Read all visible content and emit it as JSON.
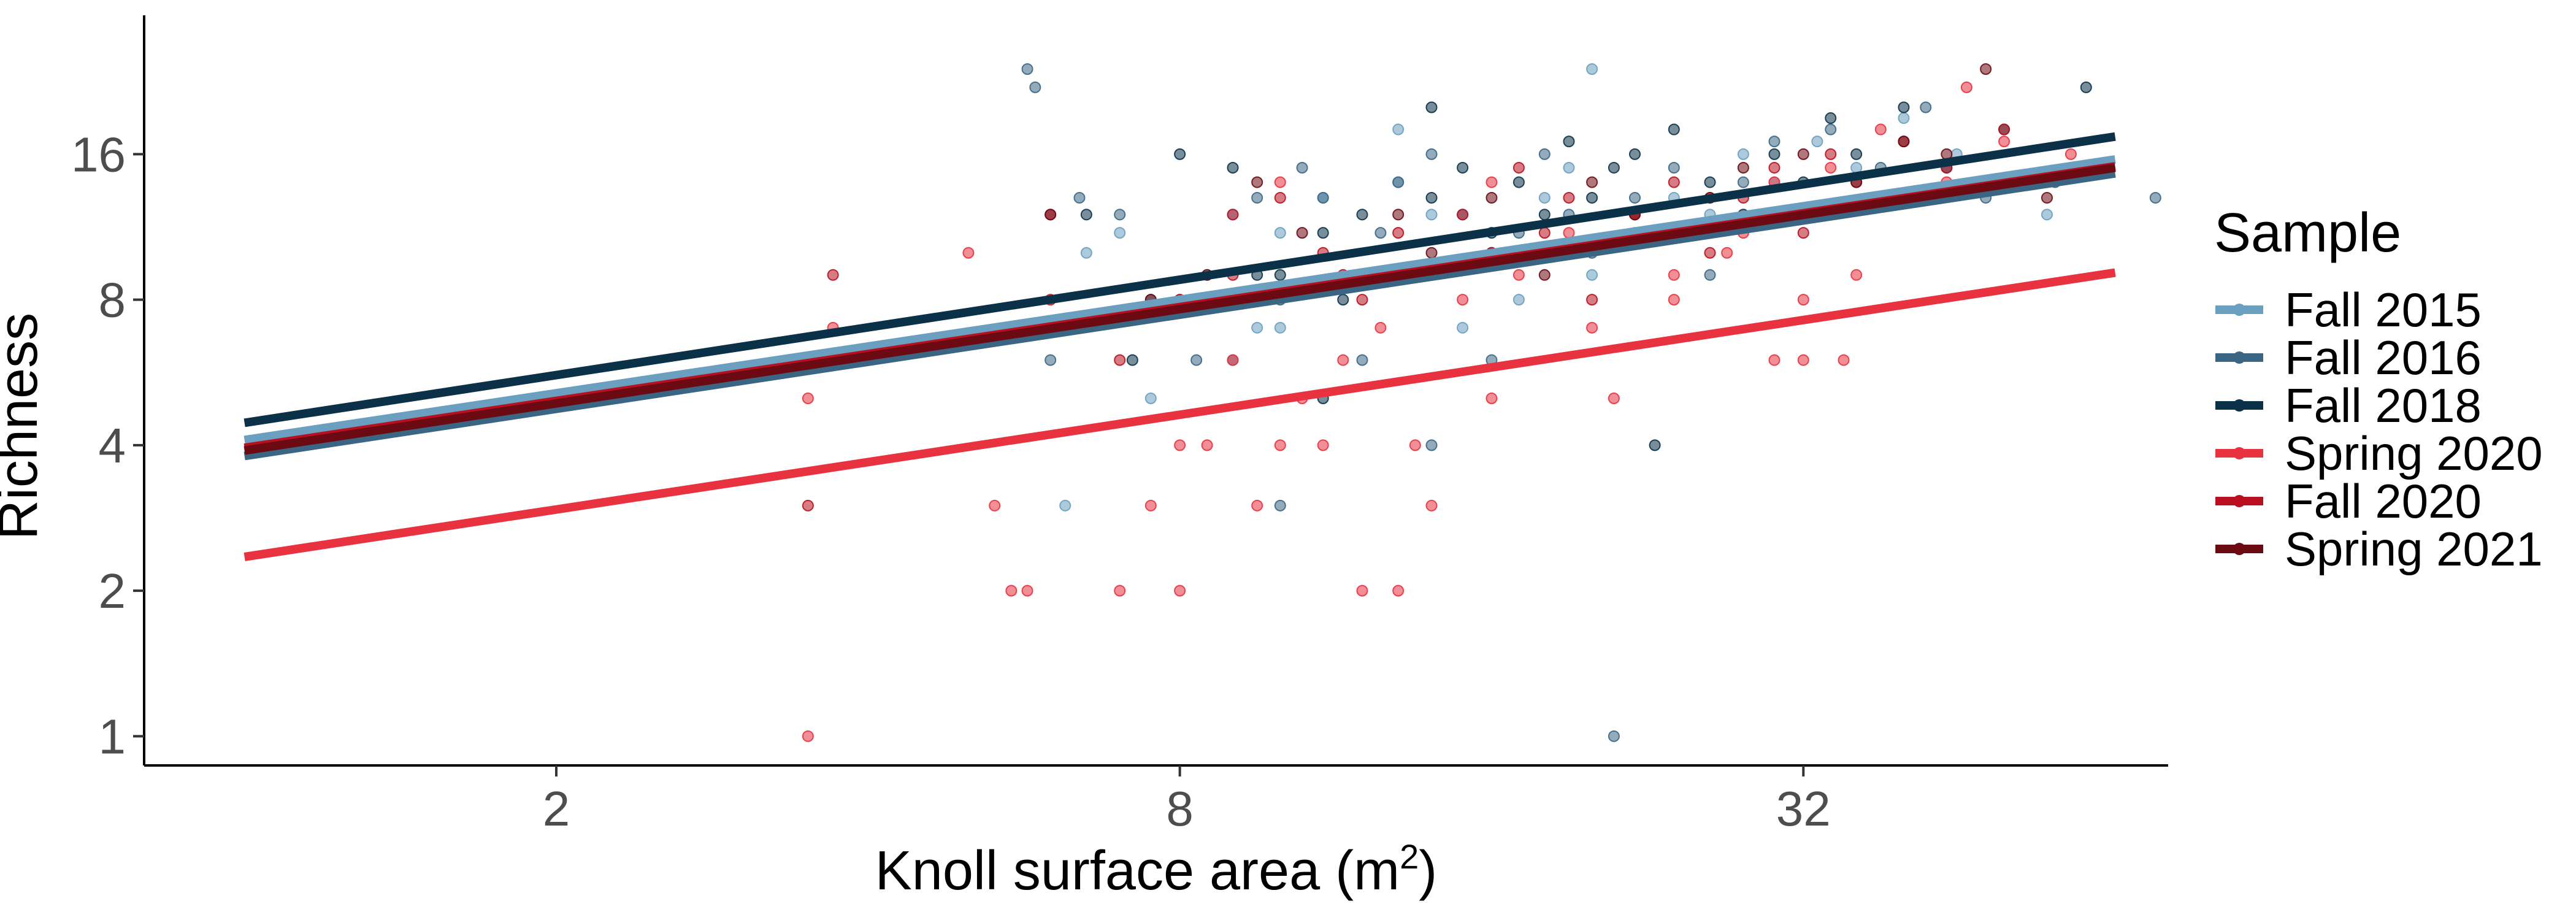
{
  "chart_data": {
    "type": "scatter",
    "x_scale": "log2",
    "y_scale": "log2",
    "xlabel": "Knoll surface area",
    "xlabel_unit_base": "m",
    "xlabel_unit_exp": "2",
    "ylabel": "Richness",
    "xlim": [
      0.8,
      72
    ],
    "ylim": [
      0.87,
      31
    ],
    "x_ticks": [
      2,
      8,
      32
    ],
    "x_tick_labels": [
      "2",
      "8",
      "32"
    ],
    "y_ticks": [
      1,
      2,
      4,
      8,
      16
    ],
    "y_tick_labels": [
      "1",
      "2",
      "4",
      "8",
      "16"
    ],
    "grid": false,
    "legend": {
      "title": "Sample",
      "position": "right"
    },
    "series": [
      {
        "name": "Fall 2015",
        "color": "#6a9fbf",
        "fit": {
          "x": [
            1,
            64
          ],
          "y": [
            4.1,
            15.6
          ]
        },
        "points": [
          [
            6.2,
            3
          ],
          [
            6.5,
            10
          ],
          [
            7,
            11
          ],
          [
            7.5,
            5
          ],
          [
            8,
            8
          ],
          [
            8.5,
            9
          ],
          [
            9,
            12
          ],
          [
            9.5,
            7
          ],
          [
            10,
            11
          ],
          [
            11,
            13
          ],
          [
            12,
            9
          ],
          [
            13,
            14
          ],
          [
            14,
            12
          ],
          [
            15,
            7
          ],
          [
            16,
            10
          ],
          [
            17,
            8
          ],
          [
            18,
            13
          ],
          [
            19,
            15
          ],
          [
            20,
            9
          ],
          [
            22,
            11
          ],
          [
            24,
            13
          ],
          [
            26,
            12
          ],
          [
            28,
            16
          ],
          [
            30,
            14
          ],
          [
            33,
            17
          ],
          [
            36,
            15
          ],
          [
            40,
            19
          ],
          [
            45,
            16
          ],
          [
            55,
            12
          ],
          [
            20,
            24
          ],
          [
            10,
            7
          ],
          [
            13,
            18
          ]
        ]
      },
      {
        "name": "Fall 2016",
        "color": "#3a6684",
        "fit": {
          "x": [
            1,
            64
          ],
          "y": [
            3.8,
            14.6
          ]
        },
        "points": [
          [
            5.7,
            24
          ],
          [
            5.8,
            22
          ],
          [
            6,
            6
          ],
          [
            6.4,
            13
          ],
          [
            7,
            12
          ],
          [
            7.5,
            8
          ],
          [
            8.3,
            6
          ],
          [
            9,
            6
          ],
          [
            9.5,
            13
          ],
          [
            10,
            8
          ],
          [
            10.5,
            15
          ],
          [
            11,
            13
          ],
          [
            12,
            6
          ],
          [
            12.5,
            11
          ],
          [
            13,
            14
          ],
          [
            14,
            16
          ],
          [
            15,
            12
          ],
          [
            16,
            10
          ],
          [
            17,
            11
          ],
          [
            18,
            16
          ],
          [
            19,
            12
          ],
          [
            20,
            10
          ],
          [
            22,
            13
          ],
          [
            24,
            15
          ],
          [
            26,
            9
          ],
          [
            28,
            14
          ],
          [
            30,
            17
          ],
          [
            32,
            12
          ],
          [
            34,
            18
          ],
          [
            38,
            15
          ],
          [
            42,
            20
          ],
          [
            48,
            13
          ],
          [
            56,
            14
          ],
          [
            70,
            13
          ],
          [
            21,
            1
          ],
          [
            10,
            3
          ],
          [
            14,
            4
          ],
          [
            16,
            6
          ]
        ]
      },
      {
        "name": "Fall 2018",
        "color": "#0b3148",
        "fit": {
          "x": [
            1,
            64
          ],
          "y": [
            4.45,
            17.4
          ]
        },
        "points": [
          [
            5.5,
            7
          ],
          [
            6,
            8
          ],
          [
            6.5,
            12
          ],
          [
            7.2,
            6
          ],
          [
            8,
            16
          ],
          [
            9,
            15
          ],
          [
            9.5,
            9
          ],
          [
            10,
            9
          ],
          [
            11,
            11
          ],
          [
            11.5,
            8
          ],
          [
            12,
            12
          ],
          [
            13,
            9
          ],
          [
            14,
            13
          ],
          [
            15,
            15
          ],
          [
            16,
            11
          ],
          [
            17,
            14
          ],
          [
            18,
            12
          ],
          [
            19,
            17
          ],
          [
            20,
            13
          ],
          [
            21,
            15
          ],
          [
            22,
            16
          ],
          [
            23,
            4
          ],
          [
            24,
            18
          ],
          [
            26,
            14
          ],
          [
            28,
            12
          ],
          [
            30,
            16
          ],
          [
            32,
            14
          ],
          [
            34,
            19
          ],
          [
            36,
            16
          ],
          [
            40,
            20
          ],
          [
            44,
            15
          ],
          [
            50,
            18
          ],
          [
            60,
            22
          ],
          [
            11,
            5
          ],
          [
            14,
            20
          ]
        ]
      },
      {
        "name": "Spring 2020",
        "color": "#e8323f",
        "fit": {
          "x": [
            1,
            64
          ],
          "y": [
            2.35,
            9.1
          ]
        },
        "points": [
          [
            3.5,
            1
          ],
          [
            3.5,
            5
          ],
          [
            3.7,
            7
          ],
          [
            5,
            10
          ],
          [
            5.3,
            3
          ],
          [
            5.5,
            2
          ],
          [
            5.7,
            2
          ],
          [
            6,
            8
          ],
          [
            7,
            2
          ],
          [
            7.5,
            3
          ],
          [
            8,
            2
          ],
          [
            8,
            4
          ],
          [
            8.5,
            4
          ],
          [
            9,
            6
          ],
          [
            9.5,
            3
          ],
          [
            10,
            4
          ],
          [
            10.5,
            5
          ],
          [
            11,
            4
          ],
          [
            11.5,
            6
          ],
          [
            12,
            2
          ],
          [
            12.5,
            7
          ],
          [
            13,
            2
          ],
          [
            13.5,
            4
          ],
          [
            14,
            3
          ],
          [
            15,
            8
          ],
          [
            16,
            5
          ],
          [
            17,
            9
          ],
          [
            18,
            10
          ],
          [
            19,
            11
          ],
          [
            20,
            7
          ],
          [
            21,
            5
          ],
          [
            22,
            12
          ],
          [
            24,
            9
          ],
          [
            26,
            13
          ],
          [
            28,
            11
          ],
          [
            30,
            14
          ],
          [
            32,
            8
          ],
          [
            34,
            15
          ],
          [
            36,
            9
          ],
          [
            38,
            18
          ],
          [
            40,
            13
          ],
          [
            44,
            14
          ],
          [
            50,
            17
          ],
          [
            58,
            16
          ],
          [
            30,
            6
          ],
          [
            32,
            6
          ],
          [
            35,
            6
          ],
          [
            46,
            22
          ],
          [
            10,
            14
          ],
          [
            16,
            14
          ],
          [
            24,
            8
          ],
          [
            27,
            10
          ],
          [
            30,
            12
          ],
          [
            34,
            12
          ]
        ]
      },
      {
        "name": "Fall 2020",
        "color": "#b8101f",
        "fit": {
          "x": [
            1,
            64
          ],
          "y": [
            3.95,
            15.1
          ]
        },
        "points": [
          [
            3.5,
            3
          ],
          [
            3.7,
            9
          ],
          [
            6,
            12
          ],
          [
            7,
            6
          ],
          [
            8,
            8
          ],
          [
            9,
            12
          ],
          [
            10,
            13
          ],
          [
            11,
            10
          ],
          [
            12,
            8
          ],
          [
            13,
            11
          ],
          [
            14,
            9
          ],
          [
            15,
            12
          ],
          [
            16,
            10
          ],
          [
            17,
            15
          ],
          [
            18,
            11
          ],
          [
            19,
            13
          ],
          [
            20,
            8
          ],
          [
            22,
            12
          ],
          [
            24,
            14
          ],
          [
            26,
            10
          ],
          [
            28,
            13
          ],
          [
            30,
            15
          ],
          [
            32,
            11
          ],
          [
            34,
            16
          ],
          [
            36,
            14
          ],
          [
            40,
            17
          ],
          [
            44,
            15
          ],
          [
            50,
            18
          ],
          [
            60,
            15
          ],
          [
            9,
            9
          ],
          [
            11.5,
            9
          ]
        ]
      },
      {
        "name": "Spring 2021",
        "color": "#6b0a12",
        "fit": {
          "x": [
            1,
            64
          ],
          "y": [
            3.9,
            15.0
          ]
        },
        "points": [
          [
            6,
            12
          ],
          [
            7.5,
            8
          ],
          [
            8.5,
            9
          ],
          [
            9.5,
            14
          ],
          [
            10.5,
            11
          ],
          [
            12,
            9
          ],
          [
            13,
            12
          ],
          [
            14,
            10
          ],
          [
            16,
            13
          ],
          [
            18,
            9
          ],
          [
            20,
            14
          ],
          [
            22,
            12
          ],
          [
            24,
            11
          ],
          [
            26,
            13
          ],
          [
            28,
            15
          ],
          [
            30,
            12
          ],
          [
            32,
            16
          ],
          [
            36,
            14
          ],
          [
            40,
            17
          ],
          [
            44,
            16
          ],
          [
            48,
            24
          ],
          [
            55,
            13
          ]
        ]
      }
    ]
  }
}
